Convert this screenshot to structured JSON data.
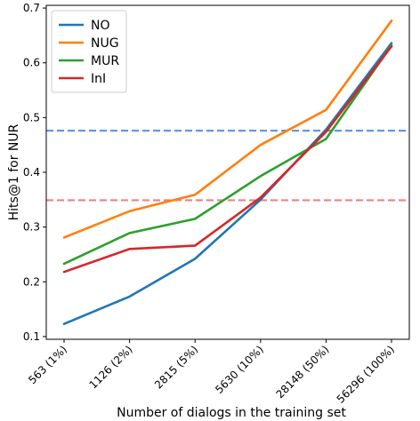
{
  "chart_data": {
    "type": "line",
    "title": "",
    "xlabel": "Number of dialogs in the training set",
    "ylabel": "Hits@1 for NUR",
    "categories": [
      "563 (1%)",
      "1126 (2%)",
      "2815 (5%)",
      "5630 (10%)",
      "28148 (50%)",
      "56296 (100%)"
    ],
    "ylim": [
      0.095,
      0.705
    ],
    "yticks": [
      0.1,
      0.2,
      0.3,
      0.4,
      0.5,
      0.6,
      0.7
    ],
    "ytick_labels": [
      "0.1",
      "0.2",
      "0.3",
      "0.4",
      "0.5",
      "0.6",
      "0.7"
    ],
    "grid": false,
    "legend_position": "top-left",
    "series": [
      {
        "name": "NO",
        "color": "#1f77b4",
        "values": [
          0.123,
          0.173,
          0.242,
          0.35,
          0.478,
          0.636
        ]
      },
      {
        "name": "NUG",
        "color": "#ff7f0e",
        "values": [
          0.281,
          0.329,
          0.359,
          0.45,
          0.514,
          0.677
        ]
      },
      {
        "name": "MUR",
        "color": "#2ca02c",
        "values": [
          0.233,
          0.289,
          0.315,
          0.393,
          0.461,
          0.632
        ]
      },
      {
        "name": "InI",
        "color": "#d62728",
        "values": [
          0.218,
          0.26,
          0.266,
          0.354,
          0.474,
          0.63
        ]
      }
    ],
    "reference_lines": [
      {
        "value": 0.476,
        "color": "#6495ed",
        "style": "dashed"
      },
      {
        "value": 0.349,
        "color": "#f08080",
        "style": "dashed"
      }
    ]
  }
}
